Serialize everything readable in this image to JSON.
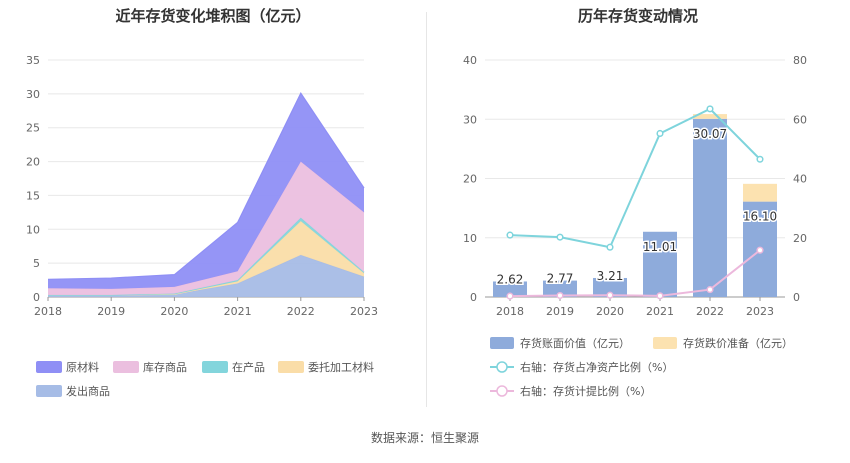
{
  "source_label": "数据来源：恒生聚源",
  "colors": {
    "raw": "#8F8FF5",
    "stock": "#EBBFDF",
    "wip": "#83D5DC",
    "consigned": "#FADDA8",
    "shipped": "#A6BCE6",
    "book_bar": "#8EABDB",
    "reserve_bar": "#FCE2B0",
    "line_ratio": "#7ED4DC",
    "line_provision": "#ECB8DC"
  },
  "chart_data": [
    {
      "type": "area",
      "stacked": true,
      "title": "近年存货变化堆积图（亿元）",
      "x": [
        "2018",
        "2019",
        "2020",
        "2021",
        "2022",
        "2023"
      ],
      "ylim": [
        0,
        35
      ],
      "yticks": [
        0,
        5,
        10,
        15,
        20,
        25,
        30,
        35
      ],
      "grid": true,
      "legend_position": "bottom",
      "series": [
        {
          "name": "发出商品",
          "color_key": "shipped",
          "values": [
            0.3,
            0.3,
            0.4,
            2.0,
            6.2,
            3.0
          ]
        },
        {
          "name": "委托加工材料",
          "color_key": "consigned",
          "values": [
            0.0,
            0.0,
            0.0,
            0.3,
            5.0,
            0.5
          ]
        },
        {
          "name": "在产品",
          "color_key": "wip",
          "values": [
            0.0,
            0.0,
            0.1,
            0.2,
            0.5,
            0.2
          ]
        },
        {
          "name": "库存商品",
          "color_key": "stock",
          "values": [
            1.0,
            0.9,
            1.0,
            1.3,
            8.3,
            8.8
          ]
        },
        {
          "name": "原材料",
          "color_key": "raw",
          "values": [
            1.3,
            1.6,
            1.8,
            7.2,
            10.1,
            3.6
          ]
        }
      ],
      "legend": [
        {
          "name": "原材料",
          "color_key": "raw"
        },
        {
          "name": "库存商品",
          "color_key": "stock"
        },
        {
          "name": "在产品",
          "color_key": "wip"
        },
        {
          "name": "委托加工材料",
          "color_key": "consigned"
        },
        {
          "name": "发出商品",
          "color_key": "shipped"
        }
      ]
    },
    {
      "type": "bar",
      "stacked": true,
      "title": "历年存货变动情况",
      "categories": [
        "2018",
        "2019",
        "2020",
        "2021",
        "2022",
        "2023"
      ],
      "ylim_left": [
        0,
        40
      ],
      "yticks_left": [
        0,
        10,
        20,
        30,
        40
      ],
      "ylim_right": [
        0,
        80
      ],
      "yticks_right": [
        0,
        20,
        40,
        60,
        80
      ],
      "grid": true,
      "legend_position": "bottom",
      "bar_series": [
        {
          "name": "存货账面价值（亿元）",
          "color_key": "book_bar",
          "values": [
            2.62,
            2.77,
            3.21,
            11.01,
            30.07,
            16.1
          ],
          "labels": [
            "2.62",
            "2.77",
            "3.21",
            "11.01",
            "30.07",
            "16.10"
          ]
        },
        {
          "name": "存货跌价准备（亿元）",
          "color_key": "reserve_bar",
          "values": [
            0.0,
            0.0,
            0.0,
            0.0,
            0.8,
            3.0
          ]
        }
      ],
      "line_series": [
        {
          "name": "右轴：存货占净资产比例（%）",
          "color_key": "line_ratio",
          "axis": "right",
          "values": [
            20.9,
            20.2,
            16.8,
            55.2,
            63.5,
            46.5
          ]
        },
        {
          "name": "右轴：存货计提比例（%）",
          "color_key": "line_provision",
          "axis": "right",
          "values": [
            0.3,
            0.5,
            0.6,
            0.4,
            2.5,
            15.8
          ]
        }
      ]
    }
  ]
}
